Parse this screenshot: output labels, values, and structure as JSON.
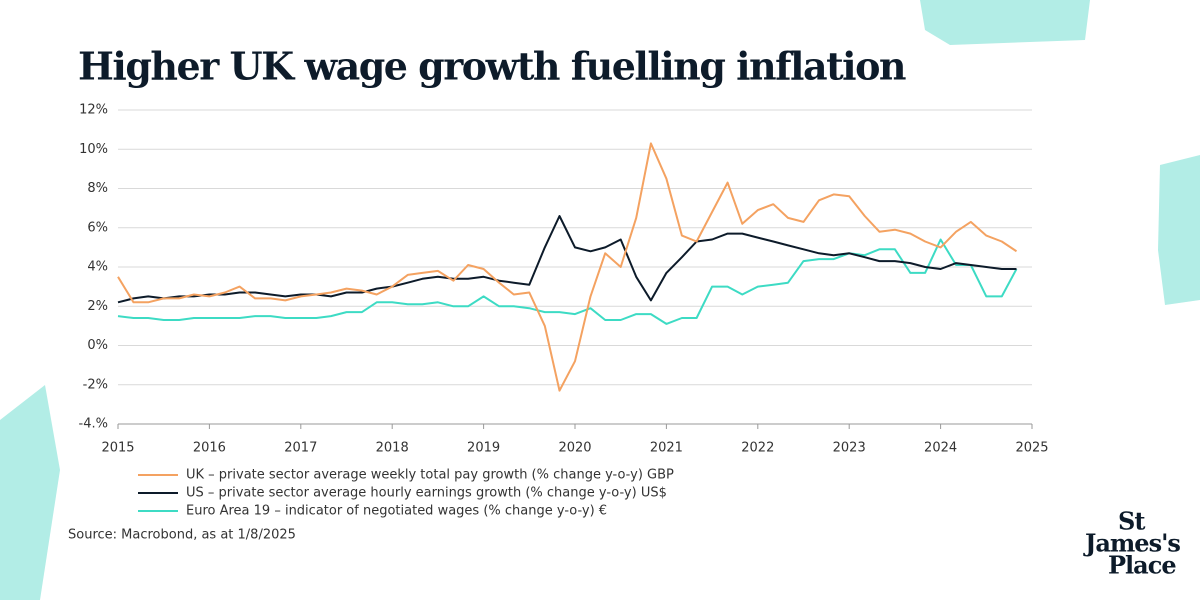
{
  "chart_data": {
    "type": "line",
    "title": "Higher UK wage growth fuelling inflation",
    "source": "Source: Macrobond, as at 1/8/2025",
    "logo": [
      "St",
      "James's",
      "Place"
    ],
    "xlim": [
      2015,
      2025
    ],
    "xticks": [
      2015,
      2016,
      2017,
      2018,
      2019,
      2020,
      2021,
      2022,
      2023,
      2024,
      2025
    ],
    "ylim": [
      -4,
      12
    ],
    "yticks": [
      {
        "value": -4,
        "label": "-4.%"
      },
      {
        "value": -2,
        "label": "-2%"
      },
      {
        "value": 0,
        "label": "0%"
      },
      {
        "value": 2,
        "label": "2%"
      },
      {
        "value": 4,
        "label": "4%"
      },
      {
        "value": 6,
        "label": "6%"
      },
      {
        "value": 8,
        "label": "8%"
      },
      {
        "value": 10,
        "label": "10%"
      },
      {
        "value": 12,
        "label": "12%"
      }
    ],
    "grid": true,
    "x": [
      2015,
      2015.17,
      2015.33,
      2015.5,
      2015.67,
      2015.83,
      2016,
      2016.17,
      2016.33,
      2016.5,
      2016.67,
      2016.83,
      2017,
      2017.17,
      2017.33,
      2017.5,
      2017.67,
      2017.83,
      2018,
      2018.17,
      2018.33,
      2018.5,
      2018.67,
      2018.83,
      2019,
      2019.17,
      2019.33,
      2019.5,
      2019.67,
      2019.83,
      2020,
      2020.17,
      2020.33,
      2020.5,
      2020.67,
      2020.83,
      2021,
      2021.17,
      2021.33,
      2021.5,
      2021.67,
      2021.83,
      2022,
      2022.17,
      2022.33,
      2022.5,
      2022.67,
      2022.83,
      2023,
      2023.17,
      2023.33,
      2023.5,
      2023.67,
      2023.83,
      2024,
      2024.17,
      2024.33,
      2024.5,
      2024.67,
      2024.83
    ],
    "series": [
      {
        "name": "UK – private sector average weekly total pay growth (% change y-o-y) GBP",
        "color": "#f4a261",
        "values": [
          3.5,
          2.2,
          2.2,
          2.4,
          2.4,
          2.6,
          2.5,
          2.7,
          3.0,
          2.4,
          2.4,
          2.3,
          2.5,
          2.6,
          2.7,
          2.9,
          2.8,
          2.6,
          3.0,
          3.6,
          3.7,
          3.8,
          3.3,
          4.1,
          3.9,
          3.2,
          2.6,
          2.7,
          1.0,
          -2.3,
          -0.8,
          2.5,
          4.7,
          4.0,
          6.5,
          10.3,
          8.5,
          5.6,
          5.3,
          6.8,
          8.3,
          6.2,
          6.9,
          7.2,
          6.5,
          6.3,
          7.4,
          7.7,
          7.6,
          6.6,
          5.8,
          5.9,
          5.7,
          5.3,
          5.0,
          5.8,
          6.3,
          5.6,
          5.3,
          4.8
        ]
      },
      {
        "name": "US – private sector average hourly earnings growth (% change y-o-y)  US$",
        "color": "#0d1b2a",
        "values": [
          2.2,
          2.4,
          2.5,
          2.4,
          2.5,
          2.5,
          2.6,
          2.6,
          2.7,
          2.7,
          2.6,
          2.5,
          2.6,
          2.6,
          2.5,
          2.7,
          2.7,
          2.9,
          3.0,
          3.2,
          3.4,
          3.5,
          3.4,
          3.4,
          3.5,
          3.3,
          3.2,
          3.1,
          5.0,
          6.6,
          5.0,
          4.8,
          5.0,
          5.4,
          3.5,
          2.3,
          3.7,
          4.5,
          5.3,
          5.4,
          5.7,
          5.7,
          5.5,
          5.3,
          5.1,
          4.9,
          4.7,
          4.6,
          4.7,
          4.5,
          4.3,
          4.3,
          4.2,
          4.0,
          3.9,
          4.2,
          4.1,
          4.0,
          3.9,
          3.9
        ]
      },
      {
        "name": "Euro Area 19 – indicator of negotiated wages (% change y-o-y) €",
        "color": "#3ddbc4",
        "values": [
          1.5,
          1.4,
          1.4,
          1.3,
          1.3,
          1.4,
          1.4,
          1.4,
          1.4,
          1.5,
          1.5,
          1.4,
          1.4,
          1.4,
          1.5,
          1.7,
          1.7,
          2.2,
          2.2,
          2.1,
          2.1,
          2.2,
          2.0,
          2.0,
          2.5,
          2.0,
          2.0,
          1.9,
          1.7,
          1.7,
          1.6,
          1.9,
          1.3,
          1.3,
          1.6,
          1.6,
          1.1,
          1.4,
          1.4,
          3.0,
          3.0,
          2.6,
          3.0,
          3.1,
          3.2,
          4.3,
          4.4,
          4.4,
          4.7,
          4.6,
          4.9,
          4.9,
          3.7,
          3.7,
          5.4,
          4.1,
          4.1,
          2.5,
          2.5,
          3.9
        ]
      }
    ]
  }
}
